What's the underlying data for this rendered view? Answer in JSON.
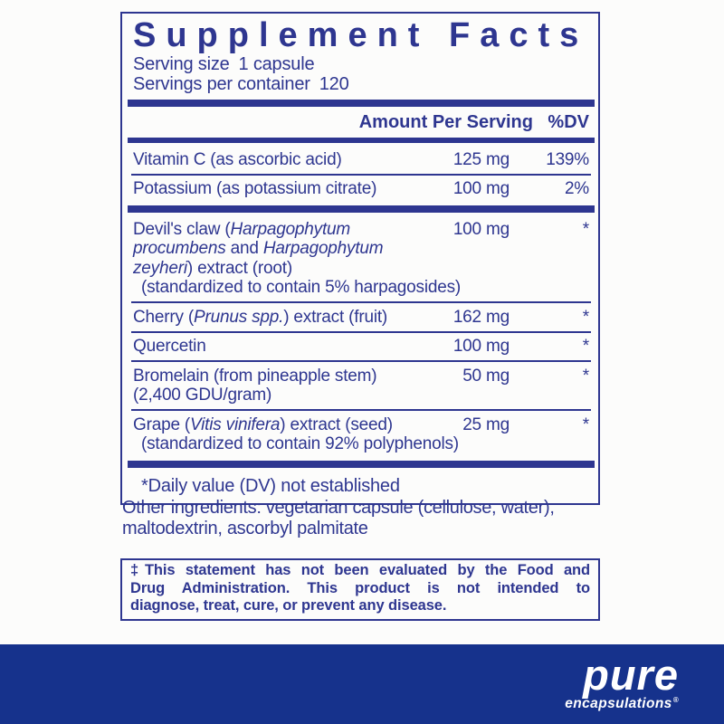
{
  "colors": {
    "navy": "#2e3690",
    "footer_navy": "#16328c"
  },
  "panel": {
    "title": "Supplement Facts",
    "serving_size": {
      "label": "Serving size",
      "value": "1 capsule"
    },
    "servings": {
      "label": "Servings per container",
      "value": "120"
    },
    "columns": {
      "amount": "Amount Per Serving",
      "dv": "%DV"
    },
    "rows": [
      {
        "lines": [
          {
            "segs": [
              {
                "t": "Vitamin C (as ascorbic acid)"
              }
            ]
          }
        ],
        "amount": "125 mg",
        "dv": "139%",
        "divider_after": "thin"
      },
      {
        "lines": [
          {
            "segs": [
              {
                "t": "Potassium (as potassium citrate)"
              }
            ]
          }
        ],
        "amount": "100 mg",
        "dv": "2%",
        "divider_after": "thick"
      },
      {
        "lines": [
          {
            "segs": [
              {
                "t": "Devil's claw ("
              },
              {
                "t": "Harpagophytum",
                "i": true
              }
            ]
          },
          {
            "segs": [
              {
                "t": "procumbens",
                "i": true
              },
              {
                "t": " and "
              },
              {
                "t": "Harpagophytum",
                "i": true
              }
            ]
          },
          {
            "segs": [
              {
                "t": "zeyheri",
                "i": true
              },
              {
                "t": ") extract (root)"
              }
            ]
          },
          {
            "indent": true,
            "segs": [
              {
                "t": "(standardized to contain 5% harpagosides)"
              }
            ]
          }
        ],
        "amount": "100 mg",
        "dv": "*",
        "divider_after": "thin"
      },
      {
        "lines": [
          {
            "segs": [
              {
                "t": "Cherry ("
              },
              {
                "t": "Prunus spp.",
                "i": true
              },
              {
                "t": ") extract (fruit)"
              }
            ]
          }
        ],
        "amount": "162 mg",
        "dv": "*",
        "divider_after": "thin"
      },
      {
        "lines": [
          {
            "segs": [
              {
                "t": "Quercetin"
              }
            ]
          }
        ],
        "amount": "100 mg",
        "dv": "*",
        "divider_after": "thin"
      },
      {
        "lines": [
          {
            "segs": [
              {
                "t": "Bromelain (from pineapple stem)"
              }
            ]
          },
          {
            "segs": [
              {
                "t": "(2,400 GDU/gram)"
              }
            ]
          }
        ],
        "amount": "50 mg",
        "dv": "*",
        "divider_after": "thin"
      },
      {
        "lines": [
          {
            "segs": [
              {
                "t": "Grape ("
              },
              {
                "t": "Vitis vinifera",
                "i": true
              },
              {
                "t": ") extract (seed)"
              }
            ]
          },
          {
            "indent": true,
            "segs": [
              {
                "t": "(standardized to contain 92% polyphenols)"
              }
            ]
          }
        ],
        "amount": "25 mg",
        "dv": "*",
        "divider_after": "thick"
      }
    ],
    "footnote": "*Daily value (DV) not established"
  },
  "other_ingredients": {
    "line1": "Other ingredients: vegetarian capsule (cellulose, water),",
    "line2": "maltodextrin, ascorbyl palmitate"
  },
  "disclaimer": {
    "lines": [
      "‡This statement has not been evaluated by the Food and",
      "Drug Administration. This product is not intended to",
      "diagnose, treat, cure, or prevent any disease."
    ]
  },
  "brand": {
    "name": "pure",
    "sub": "encapsulations",
    "reg": "®"
  }
}
